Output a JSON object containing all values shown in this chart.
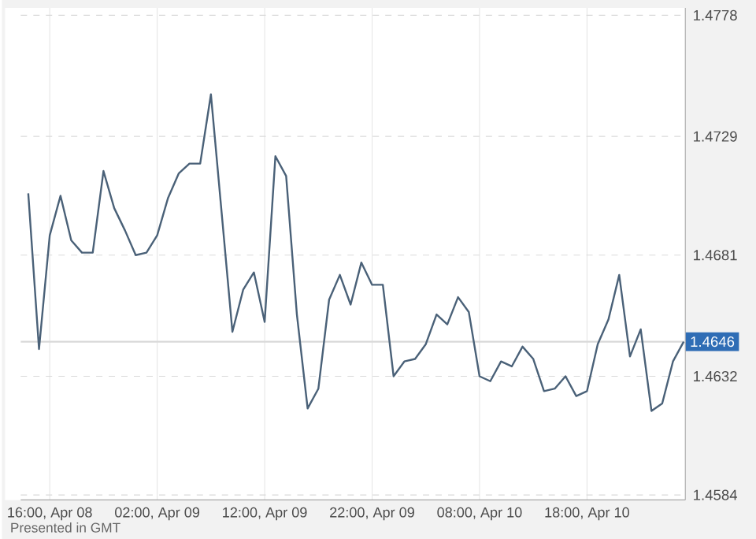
{
  "chart_data": {
    "type": "line",
    "annotations": [
      "Presented in GMT"
    ],
    "categories": [
      null,
      null,
      "16:00, Apr 08",
      null,
      null,
      null,
      null,
      null,
      null,
      null,
      null,
      null,
      "02:00, Apr 09",
      null,
      null,
      null,
      null,
      null,
      null,
      null,
      null,
      null,
      "12:00, Apr 09",
      null,
      null,
      null,
      null,
      null,
      null,
      null,
      null,
      null,
      "22:00, Apr 09",
      null,
      null,
      null,
      null,
      null,
      null,
      null,
      null,
      null,
      "08:00, Apr 10",
      null,
      null,
      null,
      null,
      null,
      null,
      null,
      null,
      null,
      "18:00, Apr 10",
      null,
      null,
      null,
      null,
      null,
      null,
      null,
      null,
      null
    ],
    "series": [
      {
        "color": "#4a6178",
        "values": [
          1.4706,
          1.4643,
          1.4689,
          1.4705,
          1.4687,
          1.4682,
          1.4682,
          1.4715,
          1.47,
          1.4691,
          1.4681,
          1.4682,
          1.4689,
          1.4704,
          1.4714,
          1.4718,
          1.4718,
          1.4746,
          1.4698,
          1.465,
          1.4667,
          1.4674,
          1.4654,
          1.4721,
          1.4713,
          1.4657,
          1.4619,
          1.4627,
          1.4663,
          1.4673,
          1.4661,
          1.4678,
          1.4669,
          1.4669,
          1.4632,
          1.4638,
          1.4639,
          1.4645,
          1.4657,
          1.4653,
          1.4664,
          1.4658,
          1.4632,
          1.463,
          1.4638,
          1.4636,
          1.4644,
          1.4639,
          1.4626,
          1.4627,
          1.4632,
          1.4624,
          1.4626,
          1.4645,
          1.4655,
          1.4673,
          1.464,
          1.4651,
          1.4618,
          1.4621,
          1.4638,
          1.4646
        ]
      }
    ],
    "ylim": [
      1.4582,
      1.4781
    ],
    "yticks": [
      1.4584,
      1.4632,
      1.4681,
      1.4729,
      1.4778
    ],
    "ref_lines": [
      {
        "axis": "y",
        "value": 1.4646,
        "label": "1.4646",
        "color": "#d9d9d9"
      }
    ],
    "grid": true,
    "marker": "none",
    "line_style": "solid"
  }
}
